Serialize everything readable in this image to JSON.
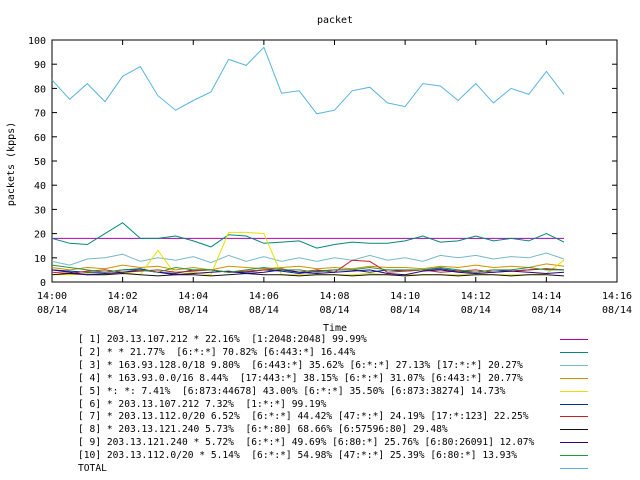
{
  "chart_data": {
    "type": "line",
    "title": "packet",
    "xlabel": "Time",
    "ylabel": "packets (kpps)",
    "ylim": [
      0,
      100
    ],
    "yticks": [
      "0",
      "10",
      "20",
      "30",
      "40",
      "50",
      "60",
      "70",
      "80",
      "90",
      "100"
    ],
    "xlim": [
      0,
      16
    ],
    "xticks": [
      {
        "time": "14:00",
        "date": "08/14"
      },
      {
        "time": "14:02",
        "date": "08/14"
      },
      {
        "time": "14:04",
        "date": "08/14"
      },
      {
        "time": "14:06",
        "date": "08/14"
      },
      {
        "time": "14:08",
        "date": "08/14"
      },
      {
        "time": "14:10",
        "date": "08/14"
      },
      {
        "time": "14:12",
        "date": "08/14"
      },
      {
        "time": "14:14",
        "date": "08/14"
      },
      {
        "time": "14:16",
        "date": "08/14"
      }
    ],
    "grid": false,
    "legend_position": "bottom",
    "x_minutes": [
      0,
      0.5,
      1,
      1.5,
      2,
      2.5,
      3,
      3.5,
      4,
      4.5,
      5,
      5.5,
      6,
      6.5,
      7,
      7.5,
      8,
      8.5,
      9,
      9.5,
      10,
      10.5,
      11,
      11.5,
      12,
      12.5,
      13,
      13.5,
      14,
      14.5
    ],
    "series": [
      {
        "legend": "[ 1] 203.13.107.212 * 22.16%  [1:2048:2048] 99.99%",
        "color": "#b000b0",
        "values": [
          18,
          18,
          18,
          18,
          18,
          18,
          18,
          18,
          18,
          18,
          18,
          18,
          18,
          18,
          18,
          18,
          18,
          18,
          18,
          18,
          18,
          18,
          18,
          18,
          18,
          18,
          18,
          18,
          18,
          18
        ]
      },
      {
        "legend": "[ 2] * * 21.77%  [6:*:*] 70.82% [6:443:*] 16.44%",
        "color": "#008a7a",
        "values": [
          18,
          16,
          15.5,
          20,
          24.5,
          18,
          18,
          19,
          17,
          14.5,
          19.5,
          19,
          16,
          16.5,
          17,
          14,
          15.5,
          16.5,
          16,
          16,
          17,
          19,
          16.5,
          17,
          19,
          17,
          18,
          17,
          20,
          16.5
        ]
      },
      {
        "legend": "[ 3] * 163.93.128.0/18 9.80%  [6:443:*] 35.62% [6:*:*] 27.13% [17:*:*] 20.27%",
        "color": "#78b8c8",
        "values": [
          8.5,
          7,
          9.5,
          10,
          11.5,
          8.5,
          10,
          9,
          10.5,
          8,
          11,
          8.5,
          10.5,
          8.5,
          10,
          8.5,
          10,
          9,
          11,
          9,
          10,
          8.5,
          11,
          10,
          11,
          9.5,
          10.5,
          10,
          12,
          9.5
        ]
      },
      {
        "legend": "[ 4] * 163.93.0.0/16 8.44%  [17:443:*] 38.15% [6:*:*] 31.07% [6:443:*] 20.77%",
        "color": "#d09000",
        "values": [
          6,
          5,
          6,
          5.5,
          7,
          6,
          6.5,
          5,
          6,
          5,
          6.5,
          6,
          5.5,
          6,
          6.5,
          5.5,
          6,
          5.5,
          6.5,
          6,
          6,
          5.5,
          6.5,
          6,
          7,
          6,
          6.5,
          6,
          7.5,
          6.5
        ]
      },
      {
        "legend": "[ 5] *: *: 7.41%  [6:873:44678] 43.00% [6:*:*] 35.50% [6:873:38274] 14.73%",
        "color": "#e8e000",
        "values": [
          3,
          3,
          3.5,
          3,
          4,
          3,
          13,
          3,
          4,
          3,
          20.5,
          20.5,
          20,
          3,
          3,
          3,
          3,
          3,
          3.5,
          3,
          3,
          3,
          3,
          3,
          3.5,
          3,
          3,
          3,
          3.5,
          9
        ]
      },
      {
        "legend": "[ 6] * 203.13.107.212 7.32%  [1:*:*] 99.19%",
        "color": "#00308a",
        "values": [
          5,
          4.5,
          4,
          4,
          5,
          5.5,
          4,
          3.5,
          5,
          5,
          4,
          4,
          5,
          4.5,
          3.5,
          4.5,
          5,
          5,
          4,
          5,
          4.5,
          5,
          5.5,
          4.5,
          4,
          5,
          4.5,
          5,
          5.5,
          5
        ]
      },
      {
        "legend": "[ 7] * 203.13.112.0/20 6.52%  [6:*:*] 44.42% [47:*:*] 24.19% [17:*:123] 22.25%",
        "color": "#c82020",
        "values": [
          4,
          3.5,
          4.5,
          5,
          4,
          4.5,
          5,
          4,
          4.5,
          5,
          4,
          4.5,
          5,
          5.5,
          4,
          5,
          4,
          9,
          8.5,
          4,
          4.5,
          5,
          4,
          4.5,
          5,
          4,
          4.5,
          5,
          5.5,
          5
        ]
      },
      {
        "legend": "[ 8] * 203.13.121.240 5.73%  [6:*:80] 68.66% [6:57596:80] 29.48%",
        "color": "#101010",
        "values": [
          3,
          3.5,
          3,
          3,
          3.5,
          3,
          2.5,
          3,
          3,
          2.5,
          3,
          3.5,
          3,
          3,
          2.5,
          3,
          3,
          2.5,
          3,
          3,
          2.5,
          3,
          3,
          2.5,
          3,
          3,
          2.5,
          3,
          3,
          2.5
        ]
      },
      {
        "legend": "[ 9] 203.13.121.240 * 5.72%  [6:*:*] 49.69% [6:80:*] 25.76% [6:80:26091] 12.07%",
        "color": "#300080",
        "values": [
          5,
          4,
          3,
          3.5,
          4,
          5,
          4,
          3,
          3.5,
          4,
          4.5,
          3.5,
          4,
          5,
          4,
          3.5,
          4,
          4.5,
          5,
          3.5,
          3,
          4.5,
          5,
          4,
          3.5,
          4,
          4.5,
          4,
          3.5,
          4
        ]
      },
      {
        "legend": "[10] 203.13.112.0/20 * 5.14%  [6:*:*] 54.98% [47:*:*] 25.39% [6:80:*] 13.93%",
        "color": "#209a40",
        "values": [
          7,
          6,
          5,
          4,
          5,
          5,
          4,
          6,
          5,
          5,
          4,
          5,
          6,
          5,
          5,
          4,
          5,
          5,
          6,
          5,
          5,
          5,
          6,
          5,
          4,
          5,
          5,
          6,
          5,
          5
        ]
      },
      {
        "legend": "TOTAL",
        "color": "#58b4e0",
        "values": [
          83.5,
          75.5,
          82,
          74.5,
          85,
          89,
          77,
          71,
          75,
          78.5,
          92,
          89.5,
          97,
          78,
          79,
          69.5,
          71,
          79,
          80.5,
          74,
          72.5,
          82,
          81,
          75,
          82,
          74,
          80,
          77.5,
          87,
          77.5
        ]
      }
    ]
  }
}
